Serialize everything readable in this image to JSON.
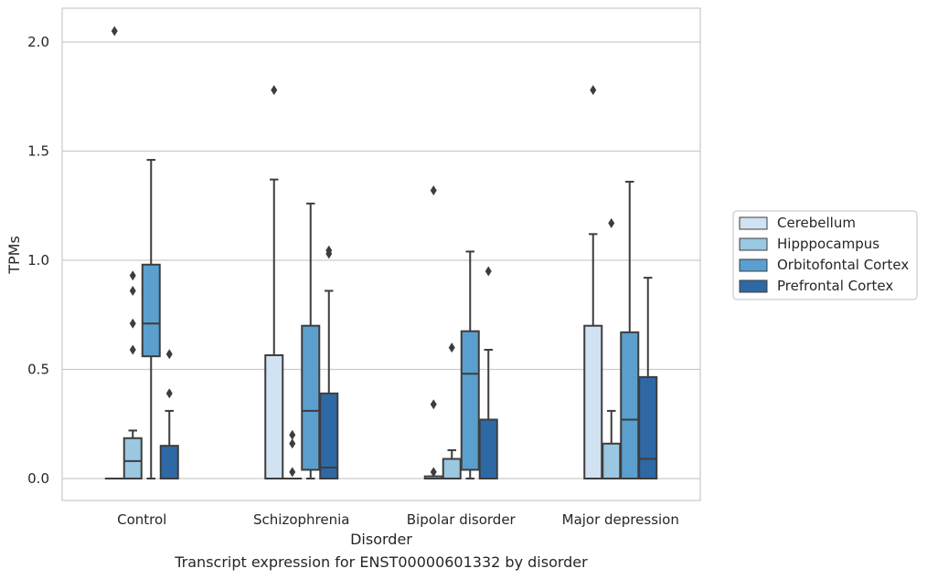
{
  "caption": "Transcript expression for ENST00000601332 by disorder",
  "chart_data": {
    "type": "box",
    "xlabel": "Disorder",
    "ylabel": "TPMs",
    "ylim": [
      -0.1,
      2.15
    ],
    "yticks": [
      "0.0",
      "0.5",
      "1.0",
      "1.5",
      "2.0"
    ],
    "grid": "horizontal",
    "legend_position": "right",
    "categories": [
      "Control",
      "Schizophrenia",
      "Bipolar disorder",
      "Major depression"
    ],
    "series": [
      {
        "name": "Cerebellum",
        "color": "#d1e2f2",
        "boxes": [
          {
            "whislo": 0,
            "q1": 0,
            "med": 0,
            "q3": 0,
            "whishi": 0,
            "fliers": [
              2.05
            ]
          },
          {
            "whislo": 0,
            "q1": 0,
            "med": 0,
            "q3": 0.565,
            "whishi": 1.37,
            "fliers": [
              1.78
            ]
          },
          {
            "whislo": 0,
            "q1": 0,
            "med": 0,
            "q3": 0.01,
            "whishi": 0.01,
            "fliers": [
              0.03,
              0.34,
              1.32
            ]
          },
          {
            "whislo": 0,
            "q1": 0,
            "med": 0,
            "q3": 0.7,
            "whishi": 1.12,
            "fliers": [
              1.78
            ]
          }
        ]
      },
      {
        "name": "Hipppocampus",
        "color": "#9ac8e0",
        "boxes": [
          {
            "whislo": 0,
            "q1": 0,
            "med": 0.08,
            "q3": 0.185,
            "whishi": 0.22,
            "fliers": [
              0.59,
              0.71,
              0.86,
              0.93
            ]
          },
          {
            "whislo": 0,
            "q1": 0,
            "med": 0,
            "q3": 0,
            "whishi": 0,
            "fliers": [
              0.03,
              0.16,
              0.2
            ]
          },
          {
            "whislo": 0,
            "q1": 0,
            "med": 0,
            "q3": 0.09,
            "whishi": 0.13,
            "fliers": [
              0.6
            ]
          },
          {
            "whislo": 0,
            "q1": 0,
            "med": 0,
            "q3": 0.16,
            "whishi": 0.31,
            "fliers": [
              1.17
            ]
          }
        ]
      },
      {
        "name": "Orbitofontal Cortex",
        "color": "#5a9fcd",
        "boxes": [
          {
            "whislo": 0,
            "q1": 0.56,
            "med": 0.71,
            "q3": 0.98,
            "whishi": 1.46,
            "fliers": []
          },
          {
            "whislo": 0,
            "q1": 0.04,
            "med": 0.31,
            "q3": 0.7,
            "whishi": 1.26,
            "fliers": []
          },
          {
            "whislo": 0,
            "q1": 0.04,
            "med": 0.48,
            "q3": 0.675,
            "whishi": 1.04,
            "fliers": []
          },
          {
            "whislo": 0,
            "q1": 0,
            "med": 0.27,
            "q3": 0.67,
            "whishi": 1.36,
            "fliers": []
          }
        ]
      },
      {
        "name": "Prefrontal Cortex",
        "color": "#2e69a6",
        "boxes": [
          {
            "whislo": 0,
            "q1": 0,
            "med": 0,
            "q3": 0.15,
            "whishi": 0.31,
            "fliers": [
              0.39,
              0.57
            ]
          },
          {
            "whislo": 0,
            "q1": 0,
            "med": 0.05,
            "q3": 0.39,
            "whishi": 0.86,
            "fliers": [
              1.03,
              1.045
            ]
          },
          {
            "whislo": 0,
            "q1": 0,
            "med": 0,
            "q3": 0.27,
            "whishi": 0.59,
            "fliers": [
              0.95
            ]
          },
          {
            "whislo": 0,
            "q1": 0,
            "med": 0.09,
            "q3": 0.465,
            "whishi": 0.92,
            "fliers": []
          }
        ]
      }
    ]
  }
}
